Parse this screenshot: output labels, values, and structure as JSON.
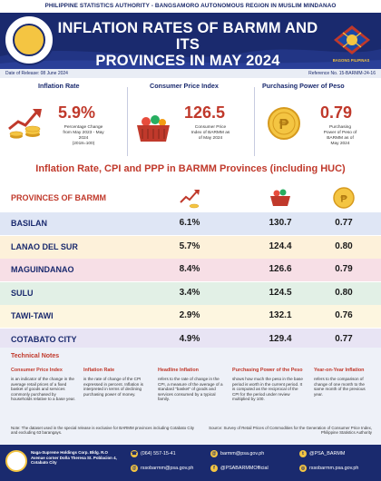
{
  "header": {
    "agency": "PHILIPPINE STATISTICS AUTHORITY - BANGSAMORO AUTONOMOUS REGION IN MUSLIM MINDANAO",
    "title_line1": "INFLATION RATES OF BARMM AND ITS",
    "title_line2": "PROVINCES IN MAY 2024",
    "bangsamoro_label": "BAGONG PILIPINAS",
    "date_of_release": "Date of Release: 08 June 2024",
    "reference_no": "Reference No. 15-BARMM-24-16"
  },
  "kpis": {
    "inflation": {
      "title": "Inflation Rate",
      "value": "5.9%",
      "desc": [
        "Percentage Change",
        "from May 2023 - May",
        "2024",
        "(2018=100)"
      ]
    },
    "cpi": {
      "title": "Consumer Price Index",
      "value": "126.5",
      "desc": [
        "Consumer Price",
        "Index of BARMM as",
        "of May 2024"
      ]
    },
    "ppp": {
      "title": "Purchasing Power of Peso",
      "value": "0.79",
      "desc": [
        "Purchasing",
        "Power of Peso of",
        "BARMM as of",
        "May 2024"
      ]
    }
  },
  "provinces_section": {
    "title": "Inflation Rate, CPI and PPP in BARMM Provinces (including HUC)",
    "column_label": "PROVINCES OF BARMM",
    "rows": [
      {
        "name": "BASILAN",
        "inflation": "6.1%",
        "cpi": "130.7",
        "ppp": "0.77"
      },
      {
        "name": "LANAO DEL SUR",
        "inflation": "5.7%",
        "cpi": "124.4",
        "ppp": "0.80"
      },
      {
        "name": "MAGUINDANAO",
        "inflation": "8.4%",
        "cpi": "126.6",
        "ppp": "0.79"
      },
      {
        "name": "SULU",
        "inflation": "3.4%",
        "cpi": "124.5",
        "ppp": "0.80"
      },
      {
        "name": "TAWI-TAWI",
        "inflation": "2.9%",
        "cpi": "132.1",
        "ppp": "0.76"
      },
      {
        "name": "COTABATO CITY",
        "inflation": "4.9%",
        "cpi": "129.4",
        "ppp": "0.77"
      }
    ],
    "row_colors": [
      "#dfe6f5",
      "#fdf1da",
      "#f7dfe6",
      "#e2f0e6",
      "#fdf6e0",
      "#e8e4f4"
    ]
  },
  "technical_notes": {
    "title": "Technical Notes",
    "columns": [
      {
        "heading": "Consumer Price Index",
        "text": "is an indicator of the change in the average retail prices of a fixed basket of goods and services commonly purchased by households relative to a base year."
      },
      {
        "heading": "Inflation Rate",
        "text": "is the rate of change of the CPI expressed in percent. Inflation is interpreted in terms of declining purchasing power of money."
      },
      {
        "heading": "Headline Inflation",
        "text": "refers to the rate of change in the CPI, a measure of the average of a standard \"basket\" of goods and services consumed by a typical family."
      },
      {
        "heading": "Purchasing Power of the Peso",
        "text": "shows how much the peso in the base period is worth in the current period. It is computed as the reciprocal of the CPI for the period under review multiplied by 100."
      },
      {
        "heading": "Year-on-Year Inflation",
        "text": "refers to the comparison of change of one month to the same month of the previous year."
      }
    ],
    "note": "Note:  The dataset used in the special release is exclusive for BARMM provinces including Cotabato City and excluding 63 barangays.",
    "source": "Source: Survey of Retail Prices of Commodities for the Generation of Consumer Price Index,  Philippine Statistics Authority"
  },
  "footer": {
    "address": "Naga-Supreme Holdings Corp. Bldg. R.O Avenue corner Doña Theresa St. Poblacion 4, Cotabato City",
    "phone": "(064) 557-15-41",
    "email1": "rssobarmm@psa.gov.ph",
    "email2": "barmm@psa.gov.ph",
    "facebook": "@PSABARMMOfficial",
    "twitter": "@PSA_BARMM",
    "website": "rssobarmm.psa.gov.ph",
    "accent": "#f4c542",
    "brand": "#1a2a6e"
  }
}
